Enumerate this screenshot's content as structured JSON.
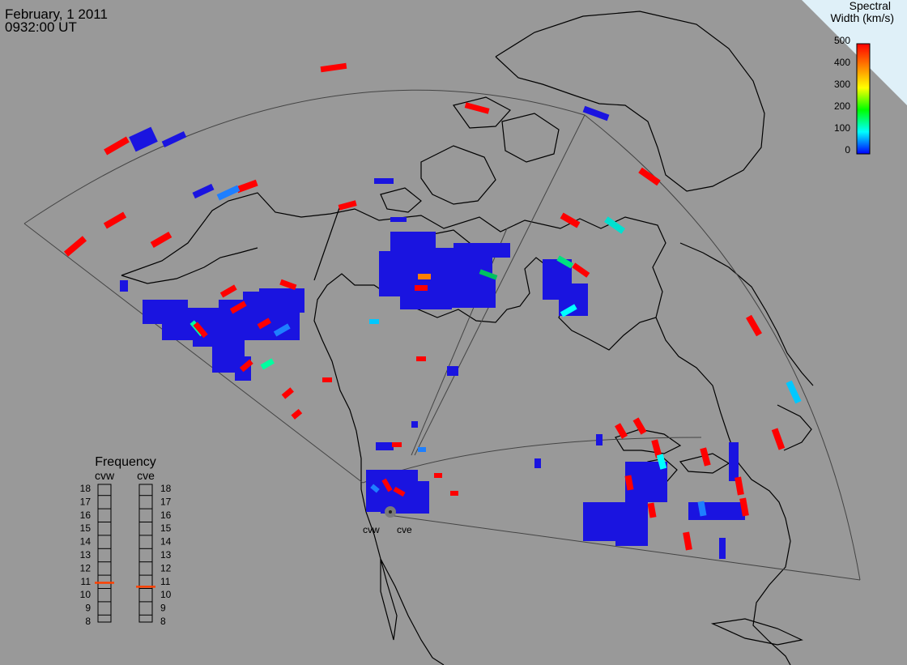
{
  "header": {
    "date": "February, 1 2011",
    "time": "0932:00 UT"
  },
  "colorbar": {
    "title_line1": "Spectral",
    "title_line2": "Width (km/s)",
    "ticks": [
      "500",
      "400",
      "300",
      "200",
      "100",
      "0"
    ],
    "colors": [
      "#ff0000",
      "#ff7f00",
      "#ffff00",
      "#00ff00",
      "#00ffff",
      "#0000ff"
    ]
  },
  "frequency_panel": {
    "title": "Frequency",
    "radars": [
      {
        "label": "cvw",
        "value": 10.9
      },
      {
        "label": "cve",
        "value": 10.6
      }
    ],
    "scale": [
      "18",
      "17",
      "16",
      "15",
      "14",
      "13",
      "12",
      "11",
      "10",
      "9",
      "8"
    ],
    "marker_color": "#ff4000"
  },
  "radar_site": {
    "labels": [
      "cvw",
      "cve"
    ]
  },
  "colors": {
    "background": "#999999",
    "coast": "#000000",
    "grid": "#444444",
    "corner": "#dff0f8"
  }
}
